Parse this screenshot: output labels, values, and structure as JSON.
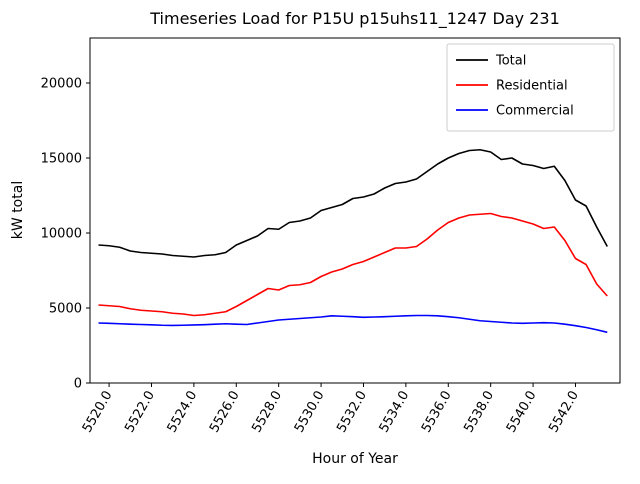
{
  "chart_data": {
    "type": "line",
    "title": "Timeseries Load for P15U p15uhs11_1247  Day 231",
    "xlabel": "Hour of Year",
    "ylabel": "kW total",
    "xlim": [
      5519.1,
      5544.1
    ],
    "ylim": [
      0,
      23000
    ],
    "grid": false,
    "legend_position": "upper right",
    "xtick_labels": [
      "5520.0",
      "5522.0",
      "5524.0",
      "5526.0",
      "5528.0",
      "5530.0",
      "5532.0",
      "5534.0",
      "5536.0",
      "5538.0",
      "5540.0",
      "5542.0"
    ],
    "ytick_labels": [
      "0",
      "5000",
      "10000",
      "15000",
      "20000"
    ],
    "x": [
      5519.5,
      5520.0,
      5520.5,
      5521.0,
      5521.5,
      5522.0,
      5522.5,
      5523.0,
      5523.5,
      5524.0,
      5524.5,
      5525.0,
      5525.5,
      5526.0,
      5526.5,
      5527.0,
      5527.5,
      5528.0,
      5528.5,
      5529.0,
      5529.5,
      5530.0,
      5530.5,
      5531.0,
      5531.5,
      5532.0,
      5532.5,
      5533.0,
      5533.5,
      5534.0,
      5534.5,
      5535.0,
      5535.5,
      5536.0,
      5536.5,
      5537.0,
      5537.5,
      5538.0,
      5538.5,
      5539.0,
      5539.5,
      5540.0,
      5540.5,
      5541.0,
      5541.5,
      5542.0,
      5542.5,
      5543.0,
      5543.5
    ],
    "series": [
      {
        "name": "Total",
        "color": "#000000",
        "values": [
          9200,
          9150,
          9050,
          8800,
          8700,
          8650,
          8600,
          8500,
          8450,
          8400,
          8500,
          8550,
          8700,
          9200,
          9500,
          9800,
          10300,
          10250,
          10700,
          10800,
          11000,
          11500,
          11700,
          11900,
          12300,
          12400,
          12600,
          13000,
          13300,
          13400,
          13600,
          14100,
          14600,
          15000,
          15300,
          15500,
          15550,
          15400,
          14900,
          15000,
          14600,
          14500,
          14300,
          14450,
          13500,
          12200,
          11800,
          10400,
          9100
        ]
      },
      {
        "name": "Residential",
        "color": "#ff0000",
        "values": [
          5200,
          5150,
          5100,
          4950,
          4850,
          4800,
          4750,
          4650,
          4600,
          4500,
          4550,
          4650,
          4750,
          5100,
          5500,
          5900,
          6300,
          6200,
          6500,
          6550,
          6700,
          7100,
          7400,
          7600,
          7900,
          8100,
          8400,
          8700,
          9000,
          9000,
          9100,
          9600,
          10200,
          10700,
          11000,
          11200,
          11250,
          11300,
          11100,
          11000,
          10800,
          10600,
          10300,
          10400,
          9500,
          8300,
          7900,
          6600,
          5800
        ]
      },
      {
        "name": "Commercial",
        "color": "#0000ff",
        "values": [
          4000,
          3980,
          3950,
          3920,
          3900,
          3880,
          3850,
          3840,
          3850,
          3870,
          3890,
          3920,
          3950,
          3920,
          3900,
          4000,
          4100,
          4200,
          4250,
          4300,
          4350,
          4400,
          4480,
          4450,
          4420,
          4380,
          4400,
          4420,
          4450,
          4480,
          4500,
          4500,
          4480,
          4420,
          4350,
          4250,
          4150,
          4100,
          4050,
          4000,
          3980,
          4000,
          4020,
          4000,
          3920,
          3820,
          3700,
          3550,
          3380
        ]
      }
    ]
  }
}
